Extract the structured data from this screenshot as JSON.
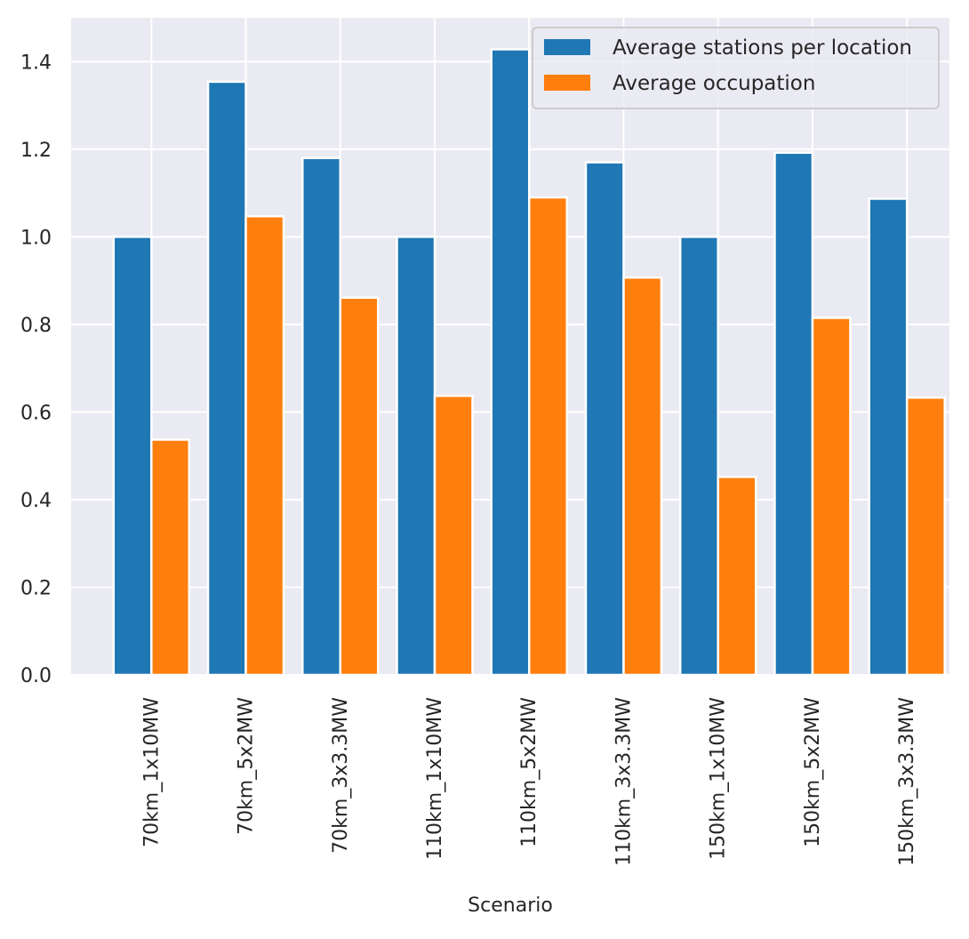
{
  "chart_data": {
    "type": "bar",
    "title": "",
    "xlabel": "Scenario",
    "ylabel": "",
    "categories": [
      "70km_1x10MW",
      "70km_5x2MW",
      "70km_3x3.3MW",
      "110km_1x10MW",
      "110km_5x2MW",
      "110km_3x3.3MW",
      "150km_1x10MW",
      "150km_5x2MW",
      "150km_3x3.3MW"
    ],
    "series": [
      {
        "name": "Average stations per location",
        "color": "#1f77b4",
        "values": [
          1.0,
          1.354,
          1.18,
          1.0,
          1.428,
          1.17,
          1.0,
          1.192,
          1.087
        ]
      },
      {
        "name": "Average occupation",
        "color": "#ff7f0e",
        "values": [
          0.537,
          1.047,
          0.861,
          0.637,
          1.09,
          0.907,
          0.452,
          0.815,
          0.633
        ]
      }
    ],
    "ylim": [
      0,
      1.5
    ],
    "yticks": [
      "0.0",
      "0.2",
      "0.4",
      "0.6",
      "0.8",
      "1.0",
      "1.2",
      "1.4"
    ],
    "grid": true,
    "legend_position": "top-right",
    "background_color": "#eaeaf2"
  }
}
